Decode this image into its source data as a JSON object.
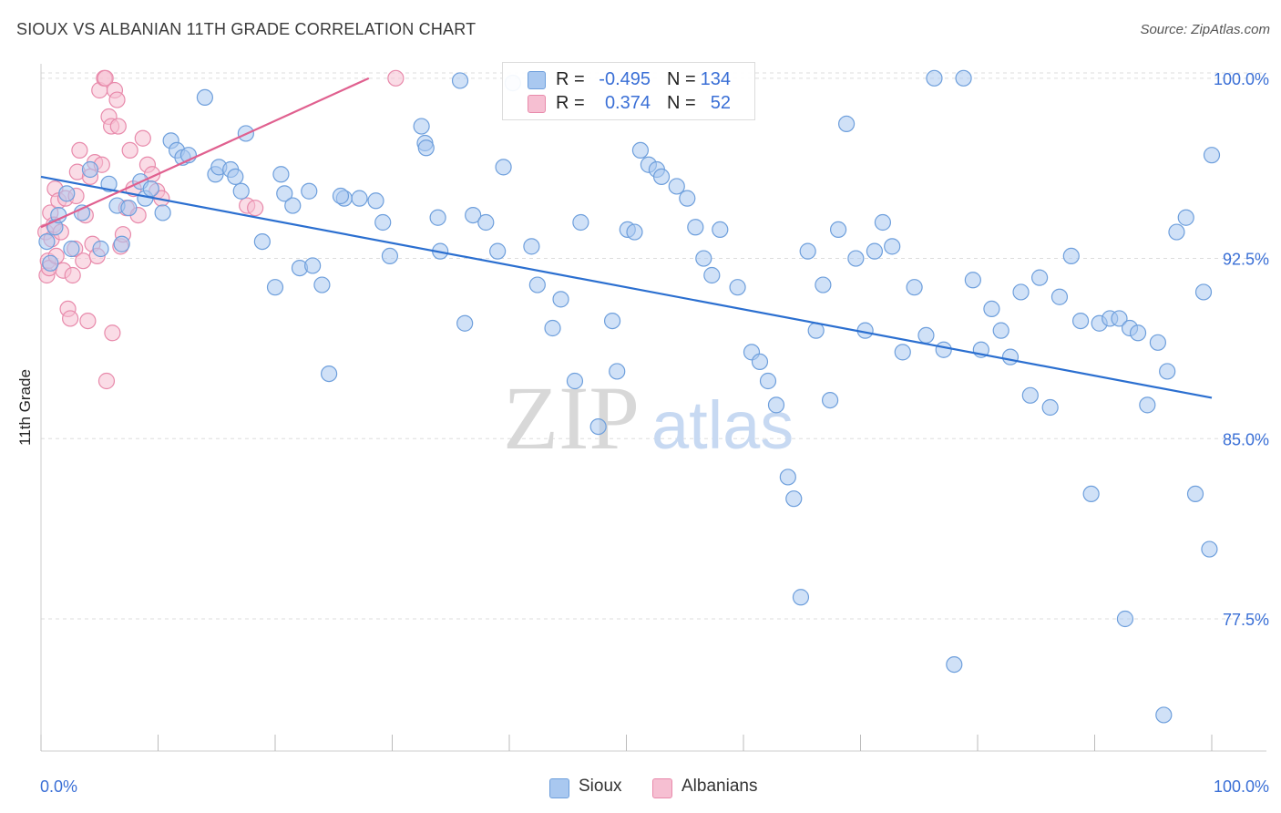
{
  "title": "SIOUX VS ALBANIAN 11TH GRADE CORRELATION CHART",
  "source": "Source: ZipAtlas.com",
  "watermark": {
    "zip": "ZIP",
    "atlas": "atlas"
  },
  "legend_top": {
    "rows": [
      {
        "r_label": "R =",
        "r_value": "-0.495",
        "n_label": "N =",
        "n_value": "134"
      },
      {
        "r_label": "R =",
        "r_value": "0.374",
        "n_label": "N =",
        "n_value": "52"
      }
    ]
  },
  "legend_bottom": {
    "sioux": "Sioux",
    "albanians": "Albanians"
  },
  "colors": {
    "sioux_fill": "#a9c8f0",
    "sioux_stroke": "#6e9fdc",
    "sioux_line": "#2b6fd0",
    "alb_fill": "#f6bfd2",
    "alb_stroke": "#e88aab",
    "alb_line": "#e0608f",
    "axis_label": "#3a6fd6",
    "grid": "#dddddd"
  },
  "chart_data": {
    "type": "scatter",
    "title": "SIOUX VS ALBANIAN 11TH GRADE CORRELATION CHART",
    "xlabel": "",
    "ylabel": "11th Grade",
    "xlim": [
      0,
      100
    ],
    "ylim": [
      72.0,
      100.6
    ],
    "x_tick_labels": [
      "0.0%",
      "100.0%"
    ],
    "y_ticks": [
      100.0,
      92.5,
      85.0,
      77.5
    ],
    "y_tick_labels": [
      "100.0%",
      "92.5%",
      "85.0%",
      "77.5%"
    ],
    "grid": true,
    "legend_position": "top-center",
    "series": [
      {
        "name": "Sioux",
        "r": -0.495,
        "n": 134,
        "trend": {
          "x": [
            0,
            100
          ],
          "y": [
            95.9,
            86.7
          ]
        },
        "points": [
          [
            0.5,
            93.2
          ],
          [
            0.8,
            92.3
          ],
          [
            1.2,
            93.8
          ],
          [
            1.5,
            94.3
          ],
          [
            2.2,
            95.2
          ],
          [
            2.6,
            92.9
          ],
          [
            3.5,
            94.4
          ],
          [
            4.2,
            96.2
          ],
          [
            5.1,
            92.9
          ],
          [
            5.8,
            95.6
          ],
          [
            6.5,
            94.7
          ],
          [
            6.9,
            93.1
          ],
          [
            7.5,
            94.6
          ],
          [
            8.5,
            95.7
          ],
          [
            8.9,
            95.0
          ],
          [
            9.4,
            95.4
          ],
          [
            10.4,
            94.4
          ],
          [
            11.1,
            97.4
          ],
          [
            11.6,
            97.0
          ],
          [
            12.1,
            96.7
          ],
          [
            12.6,
            96.8
          ],
          [
            14.0,
            99.2
          ],
          [
            14.9,
            96.0
          ],
          [
            15.2,
            96.3
          ],
          [
            16.2,
            96.2
          ],
          [
            16.6,
            95.9
          ],
          [
            17.1,
            95.3
          ],
          [
            17.5,
            97.7
          ],
          [
            18.9,
            93.2
          ],
          [
            20.0,
            91.3
          ],
          [
            20.5,
            96.0
          ],
          [
            20.8,
            95.2
          ],
          [
            21.5,
            94.7
          ],
          [
            22.1,
            92.1
          ],
          [
            22.9,
            95.3
          ],
          [
            23.2,
            92.2
          ],
          [
            24.0,
            91.4
          ],
          [
            24.6,
            87.7
          ],
          [
            25.9,
            95.0
          ],
          [
            25.6,
            95.1
          ],
          [
            27.2,
            95.0
          ],
          [
            28.6,
            94.9
          ],
          [
            29.2,
            94.0
          ],
          [
            29.8,
            92.6
          ],
          [
            32.5,
            98.0
          ],
          [
            32.8,
            97.3
          ],
          [
            32.9,
            97.1
          ],
          [
            33.9,
            94.2
          ],
          [
            34.1,
            92.8
          ],
          [
            35.8,
            99.9
          ],
          [
            36.2,
            89.8
          ],
          [
            36.9,
            94.3
          ],
          [
            38.0,
            94.0
          ],
          [
            39.0,
            92.8
          ],
          [
            39.5,
            96.3
          ],
          [
            40.3,
            99.8
          ],
          [
            41.9,
            93.0
          ],
          [
            42.4,
            91.4
          ],
          [
            43.7,
            89.6
          ],
          [
            44.4,
            90.8
          ],
          [
            45.6,
            87.4
          ],
          [
            46.1,
            94.0
          ],
          [
            47.6,
            85.5
          ],
          [
            48.8,
            89.9
          ],
          [
            49.2,
            87.8
          ],
          [
            50.1,
            93.7
          ],
          [
            50.7,
            93.6
          ],
          [
            51.2,
            97.0
          ],
          [
            51.9,
            96.4
          ],
          [
            52.6,
            96.2
          ],
          [
            53.0,
            95.9
          ],
          [
            54.3,
            95.5
          ],
          [
            55.2,
            95.0
          ],
          [
            55.9,
            93.8
          ],
          [
            56.6,
            92.5
          ],
          [
            57.3,
            91.8
          ],
          [
            58.0,
            93.7
          ],
          [
            59.5,
            91.3
          ],
          [
            60.7,
            88.6
          ],
          [
            61.4,
            88.2
          ],
          [
            62.1,
            87.4
          ],
          [
            62.8,
            86.4
          ],
          [
            63.8,
            83.4
          ],
          [
            64.3,
            82.5
          ],
          [
            64.9,
            78.4
          ],
          [
            65.5,
            92.8
          ],
          [
            66.2,
            89.5
          ],
          [
            66.8,
            91.4
          ],
          [
            67.4,
            86.6
          ],
          [
            68.1,
            93.7
          ],
          [
            68.8,
            98.1
          ],
          [
            69.6,
            92.5
          ],
          [
            70.4,
            89.5
          ],
          [
            71.2,
            92.8
          ],
          [
            71.9,
            94.0
          ],
          [
            72.7,
            93.0
          ],
          [
            73.6,
            88.6
          ],
          [
            74.6,
            91.3
          ],
          [
            75.6,
            89.3
          ],
          [
            76.3,
            100.0
          ],
          [
            77.1,
            88.7
          ],
          [
            78.0,
            75.6
          ],
          [
            78.8,
            100.0
          ],
          [
            79.6,
            91.6
          ],
          [
            80.3,
            88.7
          ],
          [
            81.2,
            90.4
          ],
          [
            82.0,
            89.5
          ],
          [
            82.8,
            88.4
          ],
          [
            83.7,
            91.1
          ],
          [
            84.5,
            86.8
          ],
          [
            85.3,
            91.7
          ],
          [
            86.2,
            86.3
          ],
          [
            87.0,
            90.9
          ],
          [
            88.0,
            92.6
          ],
          [
            88.8,
            89.9
          ],
          [
            89.7,
            82.7
          ],
          [
            90.4,
            89.8
          ],
          [
            91.3,
            90.0
          ],
          [
            92.1,
            90.0
          ],
          [
            93.0,
            89.6
          ],
          [
            93.7,
            89.4
          ],
          [
            94.5,
            86.4
          ],
          [
            95.4,
            89.0
          ],
          [
            96.2,
            87.8
          ],
          [
            97.0,
            93.6
          ],
          [
            97.8,
            94.2
          ],
          [
            98.6,
            82.7
          ],
          [
            99.3,
            91.1
          ],
          [
            99.8,
            80.4
          ],
          [
            100.0,
            96.8
          ],
          [
            92.6,
            77.5
          ],
          [
            95.9,
            73.5
          ]
        ]
      },
      {
        "name": "Albanians",
        "r": 0.374,
        "n": 52,
        "trend": {
          "x": [
            0,
            28.0
          ],
          "y": [
            93.8,
            100.0
          ]
        },
        "points": [
          [
            0.4,
            93.6
          ],
          [
            0.5,
            91.8
          ],
          [
            0.6,
            92.4
          ],
          [
            0.7,
            92.1
          ],
          [
            0.8,
            94.4
          ],
          [
            0.9,
            93.3
          ],
          [
            1.1,
            93.9
          ],
          [
            1.2,
            95.4
          ],
          [
            1.3,
            92.6
          ],
          [
            1.5,
            94.9
          ],
          [
            1.7,
            93.6
          ],
          [
            1.9,
            92.0
          ],
          [
            2.1,
            95.0
          ],
          [
            2.3,
            90.4
          ],
          [
            2.5,
            90.0
          ],
          [
            2.7,
            91.8
          ],
          [
            2.9,
            92.9
          ],
          [
            3.1,
            96.1
          ],
          [
            3.3,
            97.0
          ],
          [
            3.6,
            92.4
          ],
          [
            3.8,
            94.3
          ],
          [
            4.0,
            89.9
          ],
          [
            4.2,
            95.9
          ],
          [
            4.4,
            93.1
          ],
          [
            4.6,
            96.5
          ],
          [
            4.8,
            92.6
          ],
          [
            5.0,
            99.5
          ],
          [
            5.2,
            96.4
          ],
          [
            5.4,
            100.0
          ],
          [
            5.5,
            100.0
          ],
          [
            5.6,
            87.4
          ],
          [
            5.8,
            98.4
          ],
          [
            6.0,
            98.0
          ],
          [
            6.1,
            89.4
          ],
          [
            6.3,
            99.5
          ],
          [
            6.5,
            99.1
          ],
          [
            6.6,
            98.0
          ],
          [
            6.8,
            93.0
          ],
          [
            7.0,
            93.5
          ],
          [
            7.3,
            94.6
          ],
          [
            7.6,
            97.0
          ],
          [
            7.9,
            95.4
          ],
          [
            8.3,
            94.3
          ],
          [
            8.7,
            97.5
          ],
          [
            9.1,
            96.4
          ],
          [
            9.5,
            96.0
          ],
          [
            9.9,
            95.3
          ],
          [
            10.3,
            95.0
          ],
          [
            17.6,
            94.7
          ],
          [
            18.3,
            94.6
          ],
          [
            30.3,
            100.0
          ],
          [
            3.0,
            95.1
          ]
        ]
      }
    ]
  }
}
